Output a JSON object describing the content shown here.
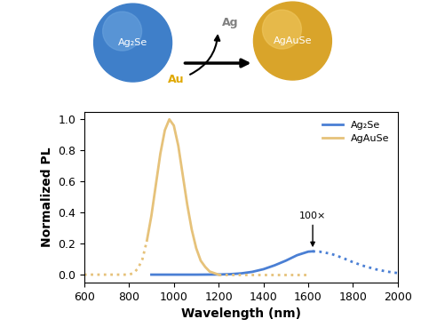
{
  "chart_data": {
    "type": "line",
    "xlabel": "Wavelength (nm)",
    "ylabel": "Normalized PL",
    "xlim": [
      600,
      2000
    ],
    "xticks": [
      600,
      800,
      1000,
      1200,
      1400,
      1600,
      1800,
      2000
    ],
    "ylim": [
      -0.05,
      1.05
    ],
    "yticks": [
      {
        "value": 0,
        "label": "0.0"
      },
      {
        "value": 0.2,
        "label": "0.2"
      },
      {
        "value": 0.4,
        "label": "0.4"
      },
      {
        "value": 0.6,
        "label": "0.6"
      },
      {
        "value": 0.8,
        "label": "0.8"
      },
      {
        "value": 1,
        "label": "1.0"
      }
    ],
    "legend": "upper right",
    "series": [
      {
        "name": "Ag₂Se",
        "color": "#4a7fd4",
        "line_style": "solid",
        "x": [
          900,
          1000,
          1100,
          1200,
          1250,
          1300,
          1350,
          1400,
          1450,
          1500,
          1550,
          1600,
          1620
        ],
        "values": [
          0,
          0,
          0,
          0.001,
          0.003,
          0.008,
          0.018,
          0.035,
          0.06,
          0.09,
          0.125,
          0.148,
          0.15
        ]
      },
      {
        "name": "Ag₂Se",
        "color": "#4a7fd4",
        "line_style": "dotted",
        "x": [
          1620,
          1650,
          1700,
          1750,
          1800,
          1850,
          1900,
          1950,
          2000
        ],
        "values": [
          0.15,
          0.148,
          0.135,
          0.11,
          0.08,
          0.055,
          0.035,
          0.02,
          0.01
        ]
      },
      {
        "name": "AgAuSe",
        "color": "#e6c27a",
        "line_style": "dotted",
        "x": [
          600,
          700,
          800,
          820,
          840,
          860,
          880
        ],
        "values": [
          0,
          0,
          0,
          0.01,
          0.04,
          0.1,
          0.22
        ]
      },
      {
        "name": "AgAuSe",
        "color": "#e6c27a",
        "line_style": "solid",
        "x": [
          880,
          900,
          920,
          940,
          960,
          980,
          1000,
          1020,
          1040,
          1060,
          1080,
          1100,
          1120,
          1140,
          1160,
          1180,
          1200
        ],
        "values": [
          0.22,
          0.38,
          0.58,
          0.78,
          0.93,
          1.0,
          0.96,
          0.83,
          0.64,
          0.45,
          0.29,
          0.17,
          0.09,
          0.05,
          0.02,
          0.01,
          0
        ]
      },
      {
        "name": "AgAuSe",
        "color": "#e6c27a",
        "line_style": "dotted",
        "x": [
          1200,
          1300,
          1400,
          1500,
          1600
        ],
        "values": [
          0,
          0,
          0,
          0,
          0
        ]
      }
    ],
    "annotations": [
      {
        "text": "100×",
        "x": 1620,
        "y": 0.16
      }
    ]
  },
  "schematic": {
    "from": "Ag₂Se",
    "to": "AgAuSe",
    "out": "Ag",
    "in": "Au"
  }
}
